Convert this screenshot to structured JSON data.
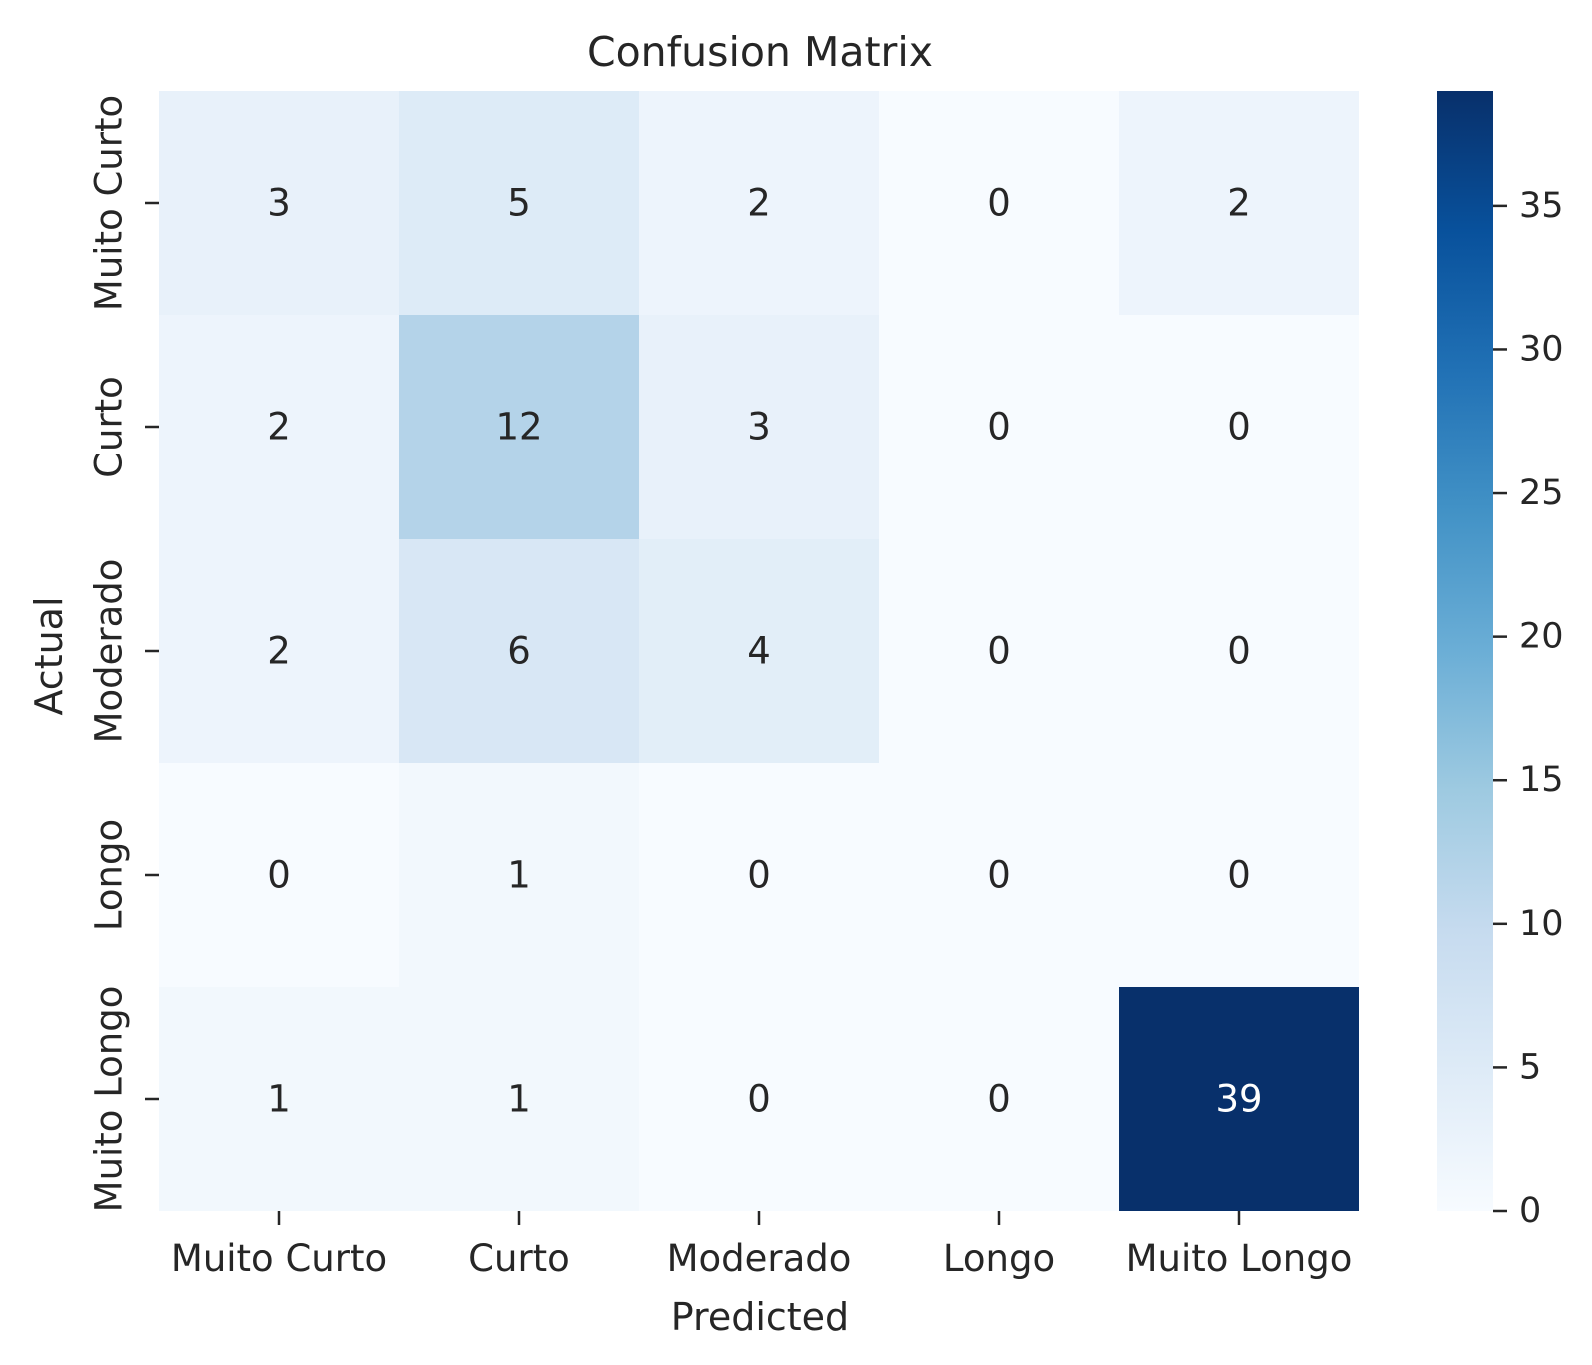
{
  "chart_data": {
    "type": "heatmap",
    "title": "Confusion Matrix",
    "xlabel": "Predicted",
    "ylabel": "Actual",
    "x_categories": [
      "Muito Curto",
      "Curto",
      "Moderado",
      "Longo",
      "Muito Longo"
    ],
    "y_categories": [
      "Muito Curto",
      "Curto",
      "Moderado",
      "Longo",
      "Muito Longo"
    ],
    "values": [
      [
        3,
        5,
        2,
        0,
        2
      ],
      [
        2,
        12,
        3,
        0,
        0
      ],
      [
        2,
        6,
        4,
        0,
        0
      ],
      [
        0,
        1,
        0,
        0,
        0
      ],
      [
        1,
        1,
        0,
        0,
        39
      ]
    ],
    "colormap": "Blues",
    "colorbar": {
      "min": 0,
      "max": 39,
      "ticks": [
        0,
        5,
        10,
        15,
        20,
        25,
        30,
        35
      ]
    },
    "colors": {
      "low": "#f7fbff",
      "high": "#08306b",
      "text_dark": "#262626",
      "text_light": "#ffffff"
    }
  }
}
